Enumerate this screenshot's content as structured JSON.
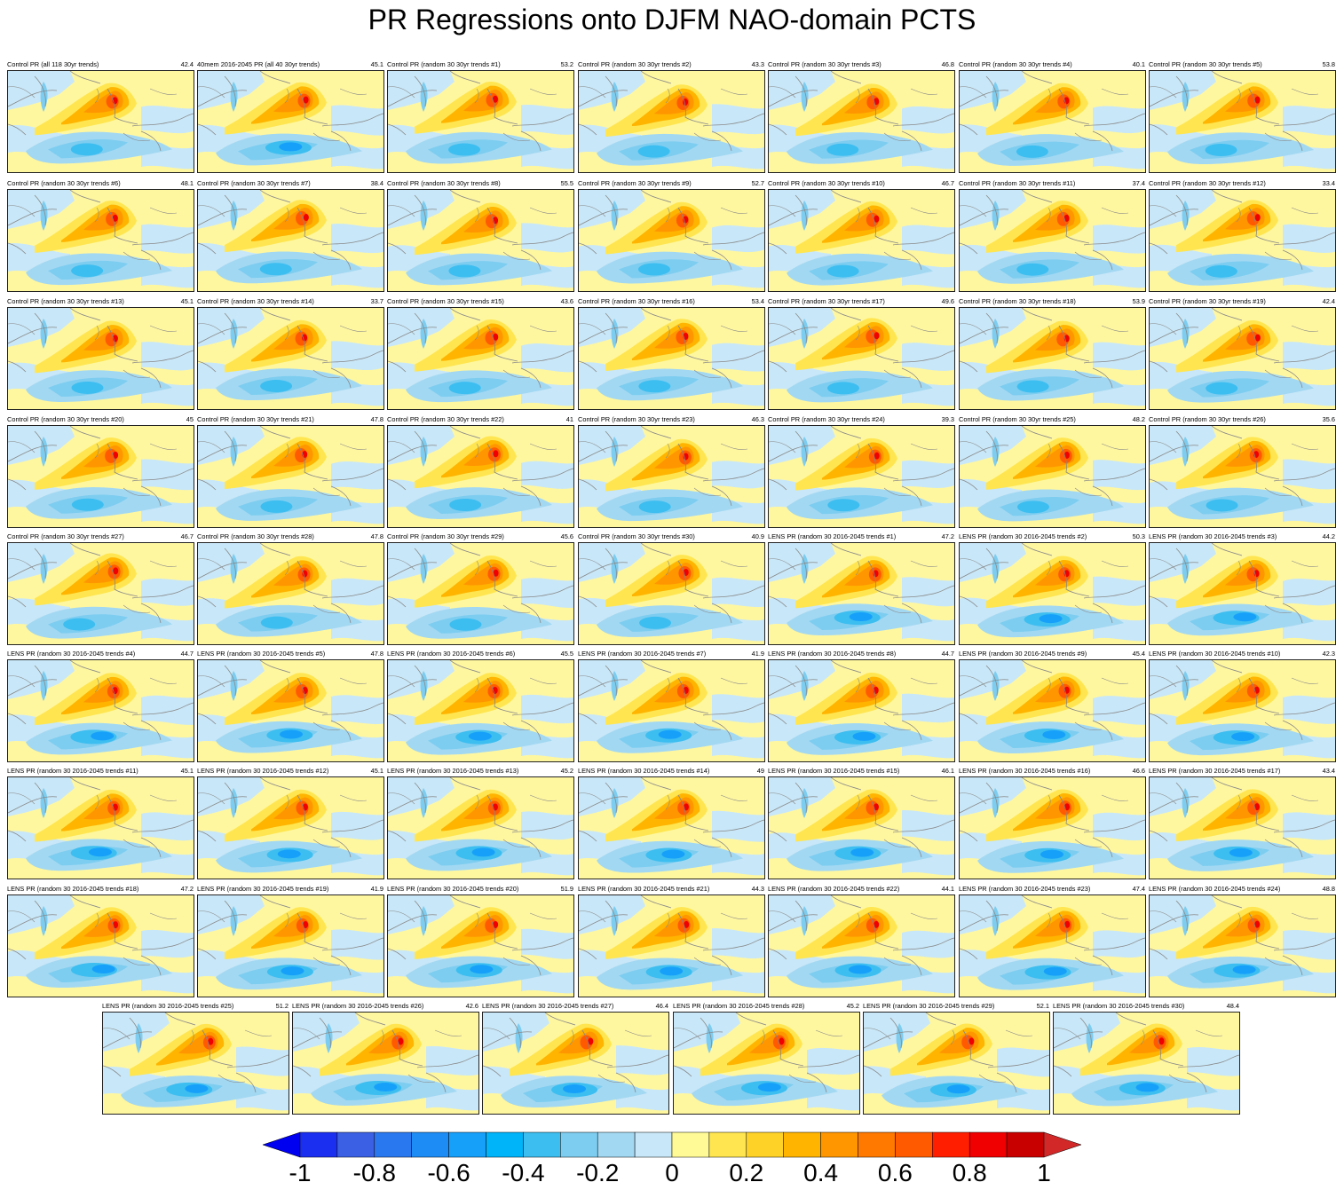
{
  "title": "PR Regressions onto DJFM NAO-domain PCTS",
  "panels": [
    {
      "label": "Control PR (all 118 30yr trends)",
      "value": "42.4",
      "type": "control"
    },
    {
      "label": "40mem 2016-2045 PR (all 40 30yr trends)",
      "value": "45.1",
      "type": "lens"
    },
    {
      "label": "Control PR (random 30 30yr trends #1)",
      "value": "53.2",
      "type": "control"
    },
    {
      "label": "Control PR (random 30 30yr trends #2)",
      "value": "43.3",
      "type": "control"
    },
    {
      "label": "Control PR (random 30 30yr trends #3)",
      "value": "46.8",
      "type": "control"
    },
    {
      "label": "Control PR (random 30 30yr trends #4)",
      "value": "40.1",
      "type": "control"
    },
    {
      "label": "Control PR (random 30 30yr trends #5)",
      "value": "53.8",
      "type": "control"
    },
    {
      "label": "Control PR (random 30 30yr trends #6)",
      "value": "48.1",
      "type": "control"
    },
    {
      "label": "Control PR (random 30 30yr trends #7)",
      "value": "38.4",
      "type": "control"
    },
    {
      "label": "Control PR (random 30 30yr trends #8)",
      "value": "55.5",
      "type": "control"
    },
    {
      "label": "Control PR (random 30 30yr trends #9)",
      "value": "52.7",
      "type": "control"
    },
    {
      "label": "Control PR (random 30 30yr trends #10)",
      "value": "46.7",
      "type": "control"
    },
    {
      "label": "Control PR (random 30 30yr trends #11)",
      "value": "37.4",
      "type": "control"
    },
    {
      "label": "Control PR (random 30 30yr trends #12)",
      "value": "33.4",
      "type": "control"
    },
    {
      "label": "Control PR (random 30 30yr trends #13)",
      "value": "45.1",
      "type": "control"
    },
    {
      "label": "Control PR (random 30 30yr trends #14)",
      "value": "33.7",
      "type": "control"
    },
    {
      "label": "Control PR (random 30 30yr trends #15)",
      "value": "43.6",
      "type": "control"
    },
    {
      "label": "Control PR (random 30 30yr trends #16)",
      "value": "53.4",
      "type": "control"
    },
    {
      "label": "Control PR (random 30 30yr trends #17)",
      "value": "49.6",
      "type": "control"
    },
    {
      "label": "Control PR (random 30 30yr trends #18)",
      "value": "53.9",
      "type": "control"
    },
    {
      "label": "Control PR (random 30 30yr trends #19)",
      "value": "42.4",
      "type": "control"
    },
    {
      "label": "Control PR (random 30 30yr trends #20)",
      "value": "45",
      "type": "control"
    },
    {
      "label": "Control PR (random 30 30yr trends #21)",
      "value": "47.8",
      "type": "control"
    },
    {
      "label": "Control PR (random 30 30yr trends #22)",
      "value": "41",
      "type": "control"
    },
    {
      "label": "Control PR (random 30 30yr trends #23)",
      "value": "46.3",
      "type": "control"
    },
    {
      "label": "Control PR (random 30 30yr trends #24)",
      "value": "39.3",
      "type": "control"
    },
    {
      "label": "Control PR (random 30 30yr trends #25)",
      "value": "48.2",
      "type": "control"
    },
    {
      "label": "Control PR (random 30 30yr trends #26)",
      "value": "35.6",
      "type": "control"
    },
    {
      "label": "Control PR (random 30 30yr trends #27)",
      "value": "46.7",
      "type": "control"
    },
    {
      "label": "Control PR (random 30 30yr trends #28)",
      "value": "47.8",
      "type": "control"
    },
    {
      "label": "Control PR (random 30 30yr trends #29)",
      "value": "45.6",
      "type": "control"
    },
    {
      "label": "Control PR (random 30 30yr trends #30)",
      "value": "40.9",
      "type": "control"
    },
    {
      "label": "LENS PR (random 30 2016-2045 trends #1)",
      "value": "47.2",
      "type": "lens"
    },
    {
      "label": "LENS PR (random 30 2016-2045 trends #2)",
      "value": "50.3",
      "type": "lens"
    },
    {
      "label": "LENS PR (random 30 2016-2045 trends #3)",
      "value": "44.2",
      "type": "lens"
    },
    {
      "label": "LENS PR (random 30 2016-2045 trends #4)",
      "value": "44.7",
      "type": "lens"
    },
    {
      "label": "LENS PR (random 30 2016-2045 trends #5)",
      "value": "47.8",
      "type": "lens"
    },
    {
      "label": "LENS PR (random 30 2016-2045 trends #6)",
      "value": "45.5",
      "type": "lens"
    },
    {
      "label": "LENS PR (random 30 2016-2045 trends #7)",
      "value": "41.9",
      "type": "lens"
    },
    {
      "label": "LENS PR (random 30 2016-2045 trends #8)",
      "value": "44.7",
      "type": "lens"
    },
    {
      "label": "LENS PR (random 30 2016-2045 trends #9)",
      "value": "45.4",
      "type": "lens"
    },
    {
      "label": "LENS PR (random 30 2016-2045 trends #10)",
      "value": "42.3",
      "type": "lens"
    },
    {
      "label": "LENS PR (random 30 2016-2045 trends #11)",
      "value": "45.1",
      "type": "lens"
    },
    {
      "label": "LENS PR (random 30 2016-2045 trends #12)",
      "value": "45.1",
      "type": "lens"
    },
    {
      "label": "LENS PR (random 30 2016-2045 trends #13)",
      "value": "45.2",
      "type": "lens"
    },
    {
      "label": "LENS PR (random 30 2016-2045 trends #14)",
      "value": "49",
      "type": "lens"
    },
    {
      "label": "LENS PR (random 30 2016-2045 trends #15)",
      "value": "46.1",
      "type": "lens"
    },
    {
      "label": "LENS PR (random 30 2016-2045 trends #16)",
      "value": "46.6",
      "type": "lens"
    },
    {
      "label": "LENS PR (random 30 2016-2045 trends #17)",
      "value": "43.4",
      "type": "lens"
    },
    {
      "label": "LENS PR (random 30 2016-2045 trends #18)",
      "value": "47.2",
      "type": "lens"
    },
    {
      "label": "LENS PR (random 30 2016-2045 trends #19)",
      "value": "41.9",
      "type": "lens"
    },
    {
      "label": "LENS PR (random 30 2016-2045 trends #20)",
      "value": "51.9",
      "type": "lens"
    },
    {
      "label": "LENS PR (random 30 2016-2045 trends #21)",
      "value": "44.3",
      "type": "lens"
    },
    {
      "label": "LENS PR (random 30 2016-2045 trends #22)",
      "value": "44.1",
      "type": "lens"
    },
    {
      "label": "LENS PR (random 30 2016-2045 trends #23)",
      "value": "47.4",
      "type": "lens"
    },
    {
      "label": "LENS PR (random 30 2016-2045 trends #24)",
      "value": "48.8",
      "type": "lens"
    },
    {
      "label": "LENS PR (random 30 2016-2045 trends #25)",
      "value": "51.2",
      "type": "lens"
    },
    {
      "label": "LENS PR (random 30 2016-2045 trends #26)",
      "value": "42.6",
      "type": "lens"
    },
    {
      "label": "LENS PR (random 30 2016-2045 trends #27)",
      "value": "46.4",
      "type": "lens"
    },
    {
      "label": "LENS PR (random 30 2016-2045 trends #28)",
      "value": "45.2",
      "type": "lens"
    },
    {
      "label": "LENS PR (random 30 2016-2045 trends #29)",
      "value": "52.1",
      "type": "lens"
    },
    {
      "label": "LENS PR (random 30 2016-2045 trends #30)",
      "value": "48.4",
      "type": "lens"
    }
  ],
  "colorbar": {
    "colors": [
      "#1a2ff0",
      "#3b60e4",
      "#2a78f0",
      "#1e8cf5",
      "#17a0fa",
      "#00b4fa",
      "#3cbef0",
      "#7dcdf0",
      "#a3d8f2",
      "#c8e7f8",
      "#fffa96",
      "#ffe650",
      "#ffd228",
      "#ffb400",
      "#ff9600",
      "#ff7800",
      "#ff5a00",
      "#ff1e00",
      "#f00000",
      "#c80000"
    ],
    "lowArrowColor": "#0000f0",
    "highArrowColor": "#d22828",
    "tick_labels": [
      "-1",
      "-0.8",
      "-0.6",
      "-0.4",
      "-0.2",
      "0",
      "0.2",
      "0.4",
      "0.6",
      "0.8",
      "1"
    ]
  }
}
